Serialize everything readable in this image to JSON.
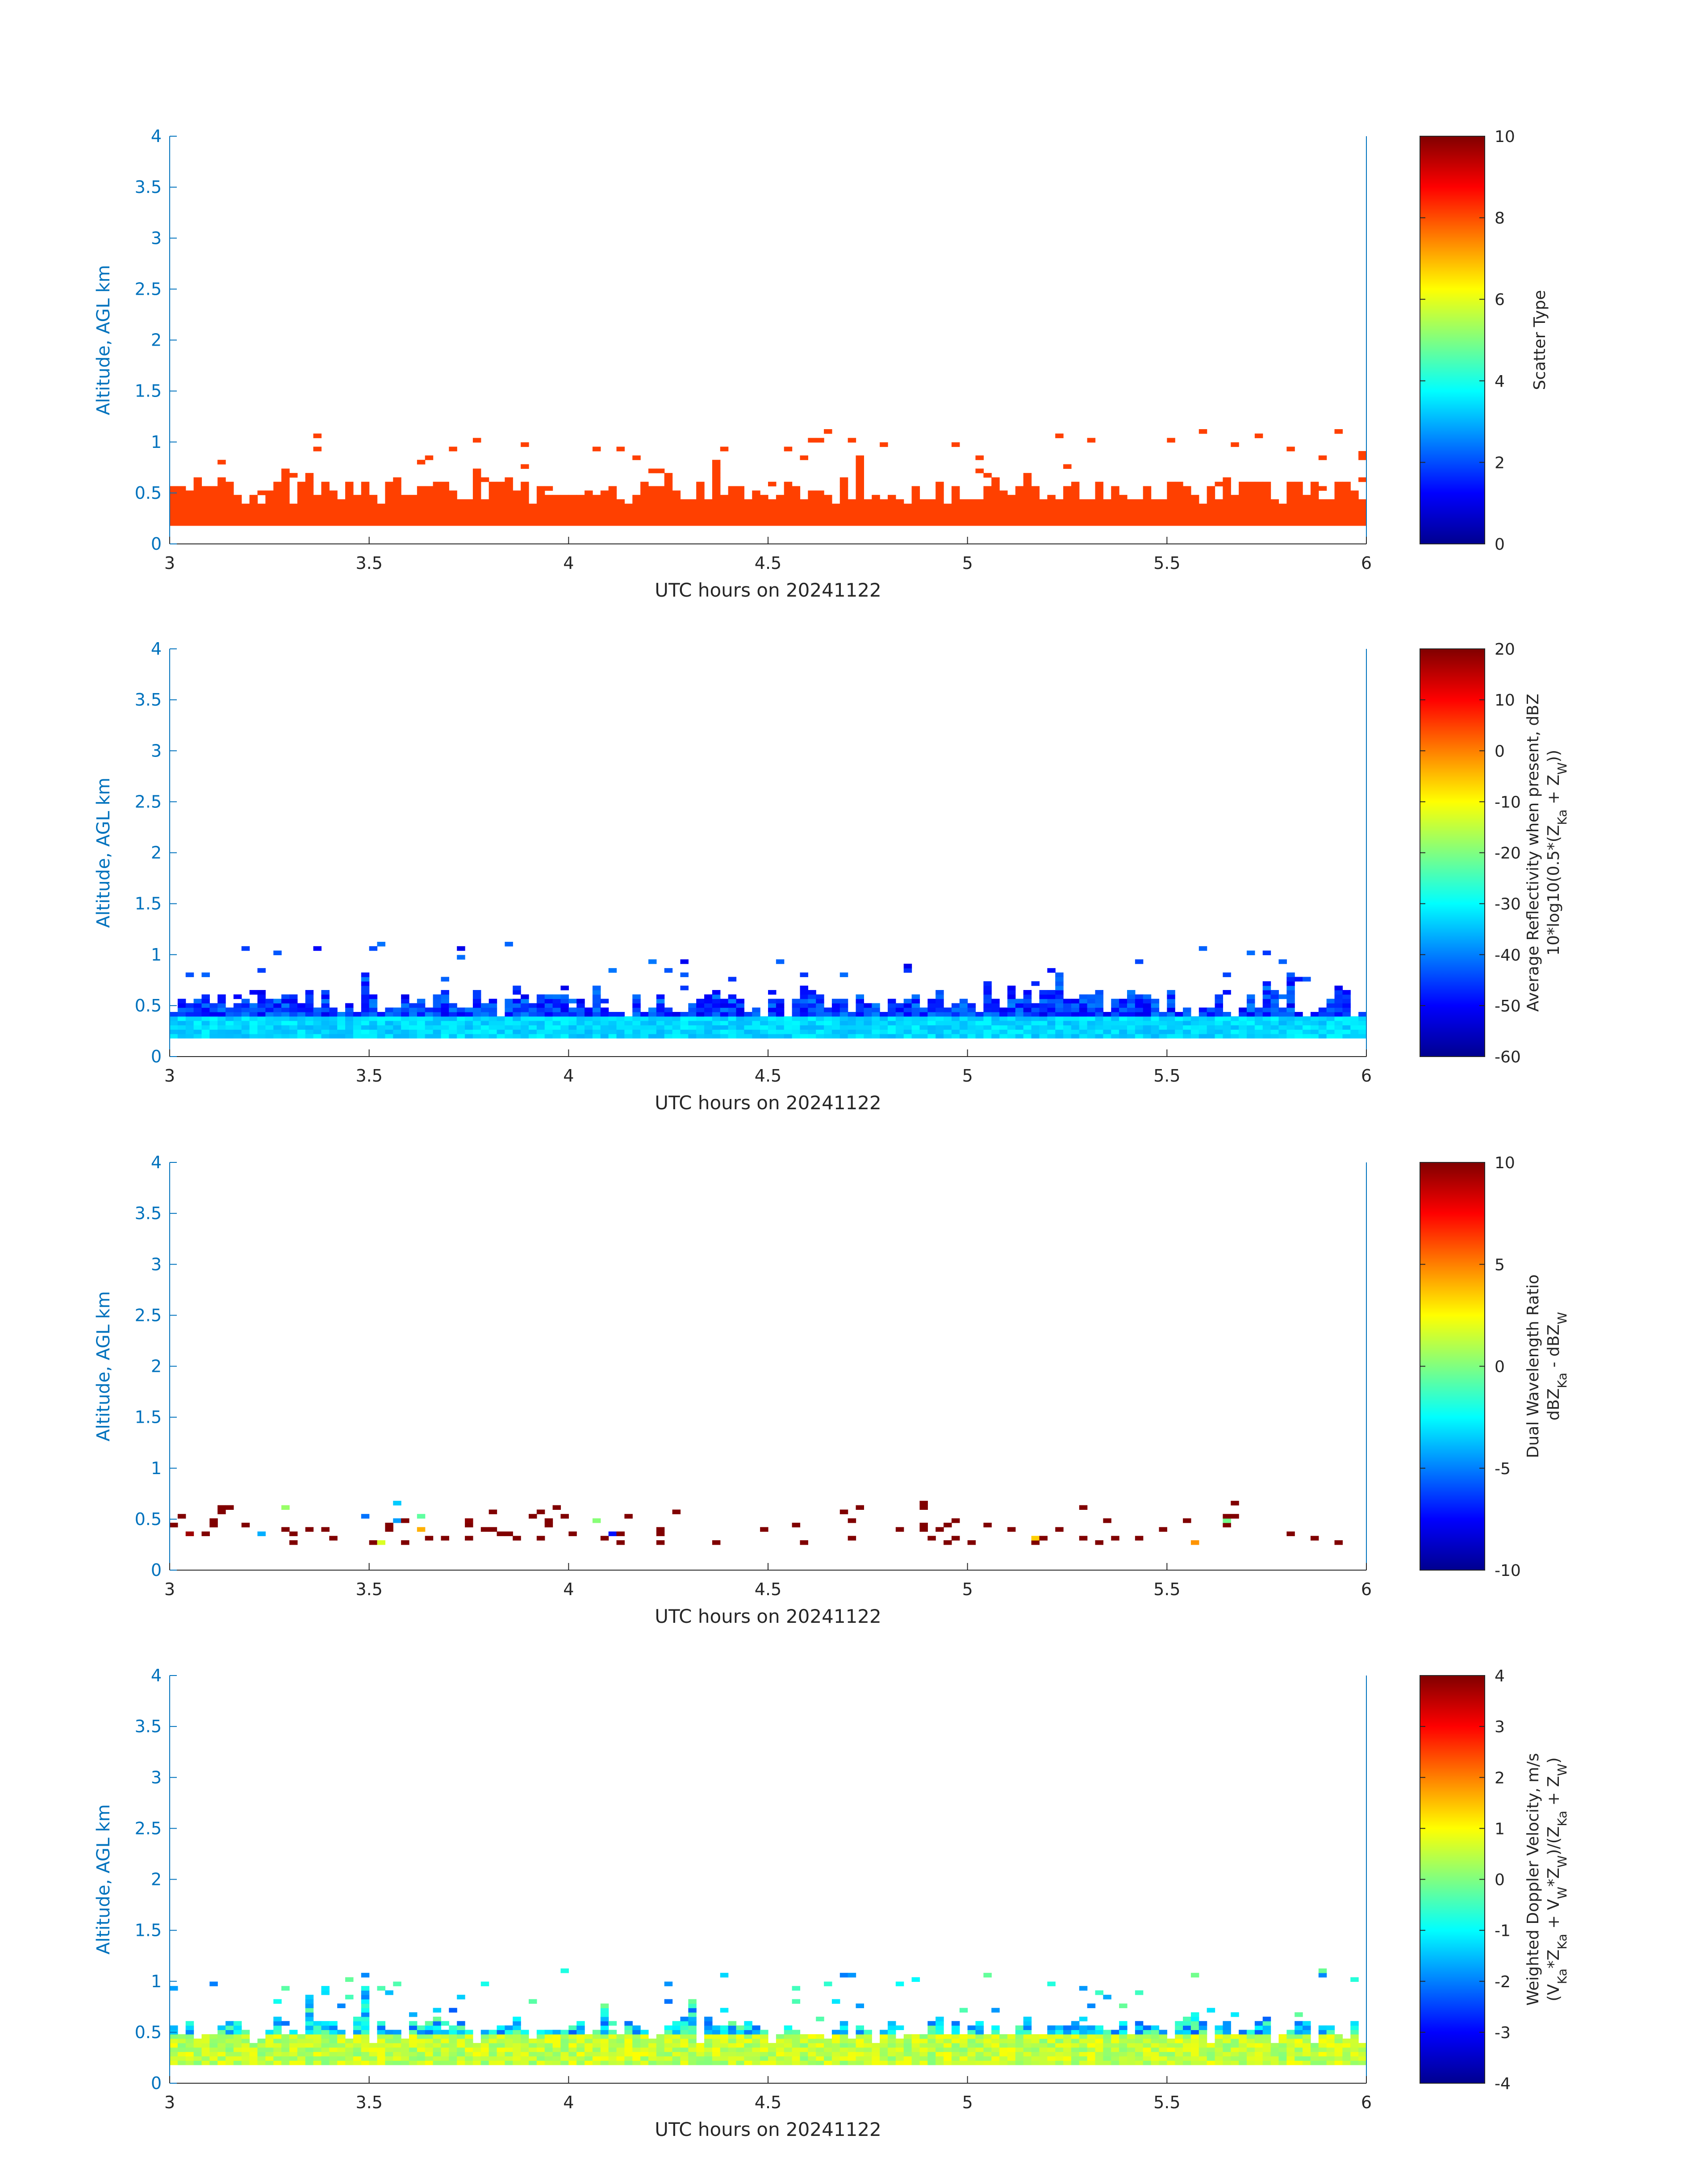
{
  "chart_data": [
    {
      "type": "heatmap",
      "xlabel": "UTC hours on 20241122",
      "ylabel": "Altitude, AGL km",
      "xlim": [
        3,
        6
      ],
      "ylim": [
        0,
        4
      ],
      "xticks": [
        "3",
        "3.5",
        "4",
        "4.5",
        "5",
        "5.5",
        "6"
      ],
      "yticks": [
        "0",
        "0.5",
        "1",
        "1.5",
        "2",
        "2.5",
        "3",
        "3.5",
        "4"
      ],
      "colorbar": {
        "label_lines": [
          "Scatter Type"
        ],
        "range": [
          0,
          10
        ],
        "ticks": [
          "0",
          "2",
          "4",
          "6",
          "8",
          "10"
        ]
      },
      "fill": "scatter-type",
      "value_note": "nearly all returns category 9",
      "layer": {
        "base_km": 0.18,
        "typical_top_km": 0.5,
        "max_top_km": 1.1
      }
    },
    {
      "type": "heatmap",
      "xlabel": "UTC hours on 20241122",
      "ylabel": "Altitude, AGL km",
      "xlim": [
        3,
        6
      ],
      "ylim": [
        0,
        4
      ],
      "xticks": [
        "3",
        "3.5",
        "4",
        "4.5",
        "5",
        "5.5",
        "6"
      ],
      "yticks": [
        "0",
        "0.5",
        "1",
        "1.5",
        "2",
        "2.5",
        "3",
        "3.5",
        "4"
      ],
      "colorbar": {
        "label_lines": [
          "Average Reflectivity when present, dBZ",
          "10*log10(0.5*(Z_Ka + Z_W))"
        ],
        "range": [
          -60,
          20
        ],
        "ticks": [
          "-60",
          "-50",
          "-40",
          "-30",
          "-20",
          "-10",
          "0",
          "10",
          "20"
        ]
      },
      "fill": "reflectivity",
      "value_range_observed": [
        -55,
        -22
      ],
      "layer": {
        "base_km": 0.18,
        "typical_top_km": 0.5,
        "max_top_km": 1.1
      }
    },
    {
      "type": "heatmap",
      "xlabel": "UTC hours on 20241122",
      "ylabel": "Altitude, AGL km",
      "xlim": [
        3,
        6
      ],
      "ylim": [
        0,
        4
      ],
      "xticks": [
        "3",
        "3.5",
        "4",
        "4.5",
        "5",
        "5.5",
        "6"
      ],
      "yticks": [
        "0",
        "0.5",
        "1",
        "1.5",
        "2",
        "2.5",
        "3",
        "3.5",
        "4"
      ],
      "colorbar": {
        "label_lines": [
          "Dual Wavelength Ratio",
          "dBZ_Ka - dBZ_W"
        ],
        "range": [
          -10,
          10
        ],
        "ticks": [
          "-10",
          "-5",
          "0",
          "5",
          "10"
        ]
      },
      "fill": "dwr",
      "value_note": "sparse pixels, mostly +10",
      "layer": {
        "base_km": 0.25,
        "typical_top_km": 0.55,
        "max_top_km": 0.7
      }
    },
    {
      "type": "heatmap",
      "xlabel": "UTC hours on 20241122",
      "ylabel": "Altitude, AGL km",
      "xlim": [
        3,
        6
      ],
      "ylim": [
        0,
        4
      ],
      "xticks": [
        "3",
        "3.5",
        "4",
        "4.5",
        "5",
        "5.5",
        "6"
      ],
      "yticks": [
        "0",
        "0.5",
        "1",
        "1.5",
        "2",
        "2.5",
        "3",
        "3.5",
        "4"
      ],
      "colorbar": {
        "label_lines": [
          "Weighted Doppler Velocity, m/s",
          "(V_Ka*Z_Ka + V_W*Z_W)/(Z_Ka + Z_W)"
        ],
        "range": [
          -4,
          4
        ],
        "ticks": [
          "-4",
          "-3",
          "-2",
          "-1",
          "0",
          "1",
          "2",
          "3",
          "4"
        ]
      },
      "fill": "velocity",
      "value_range_observed": [
        -3,
        2.5
      ],
      "layer": {
        "base_km": 0.18,
        "typical_top_km": 0.5,
        "max_top_km": 1.1
      }
    }
  ]
}
